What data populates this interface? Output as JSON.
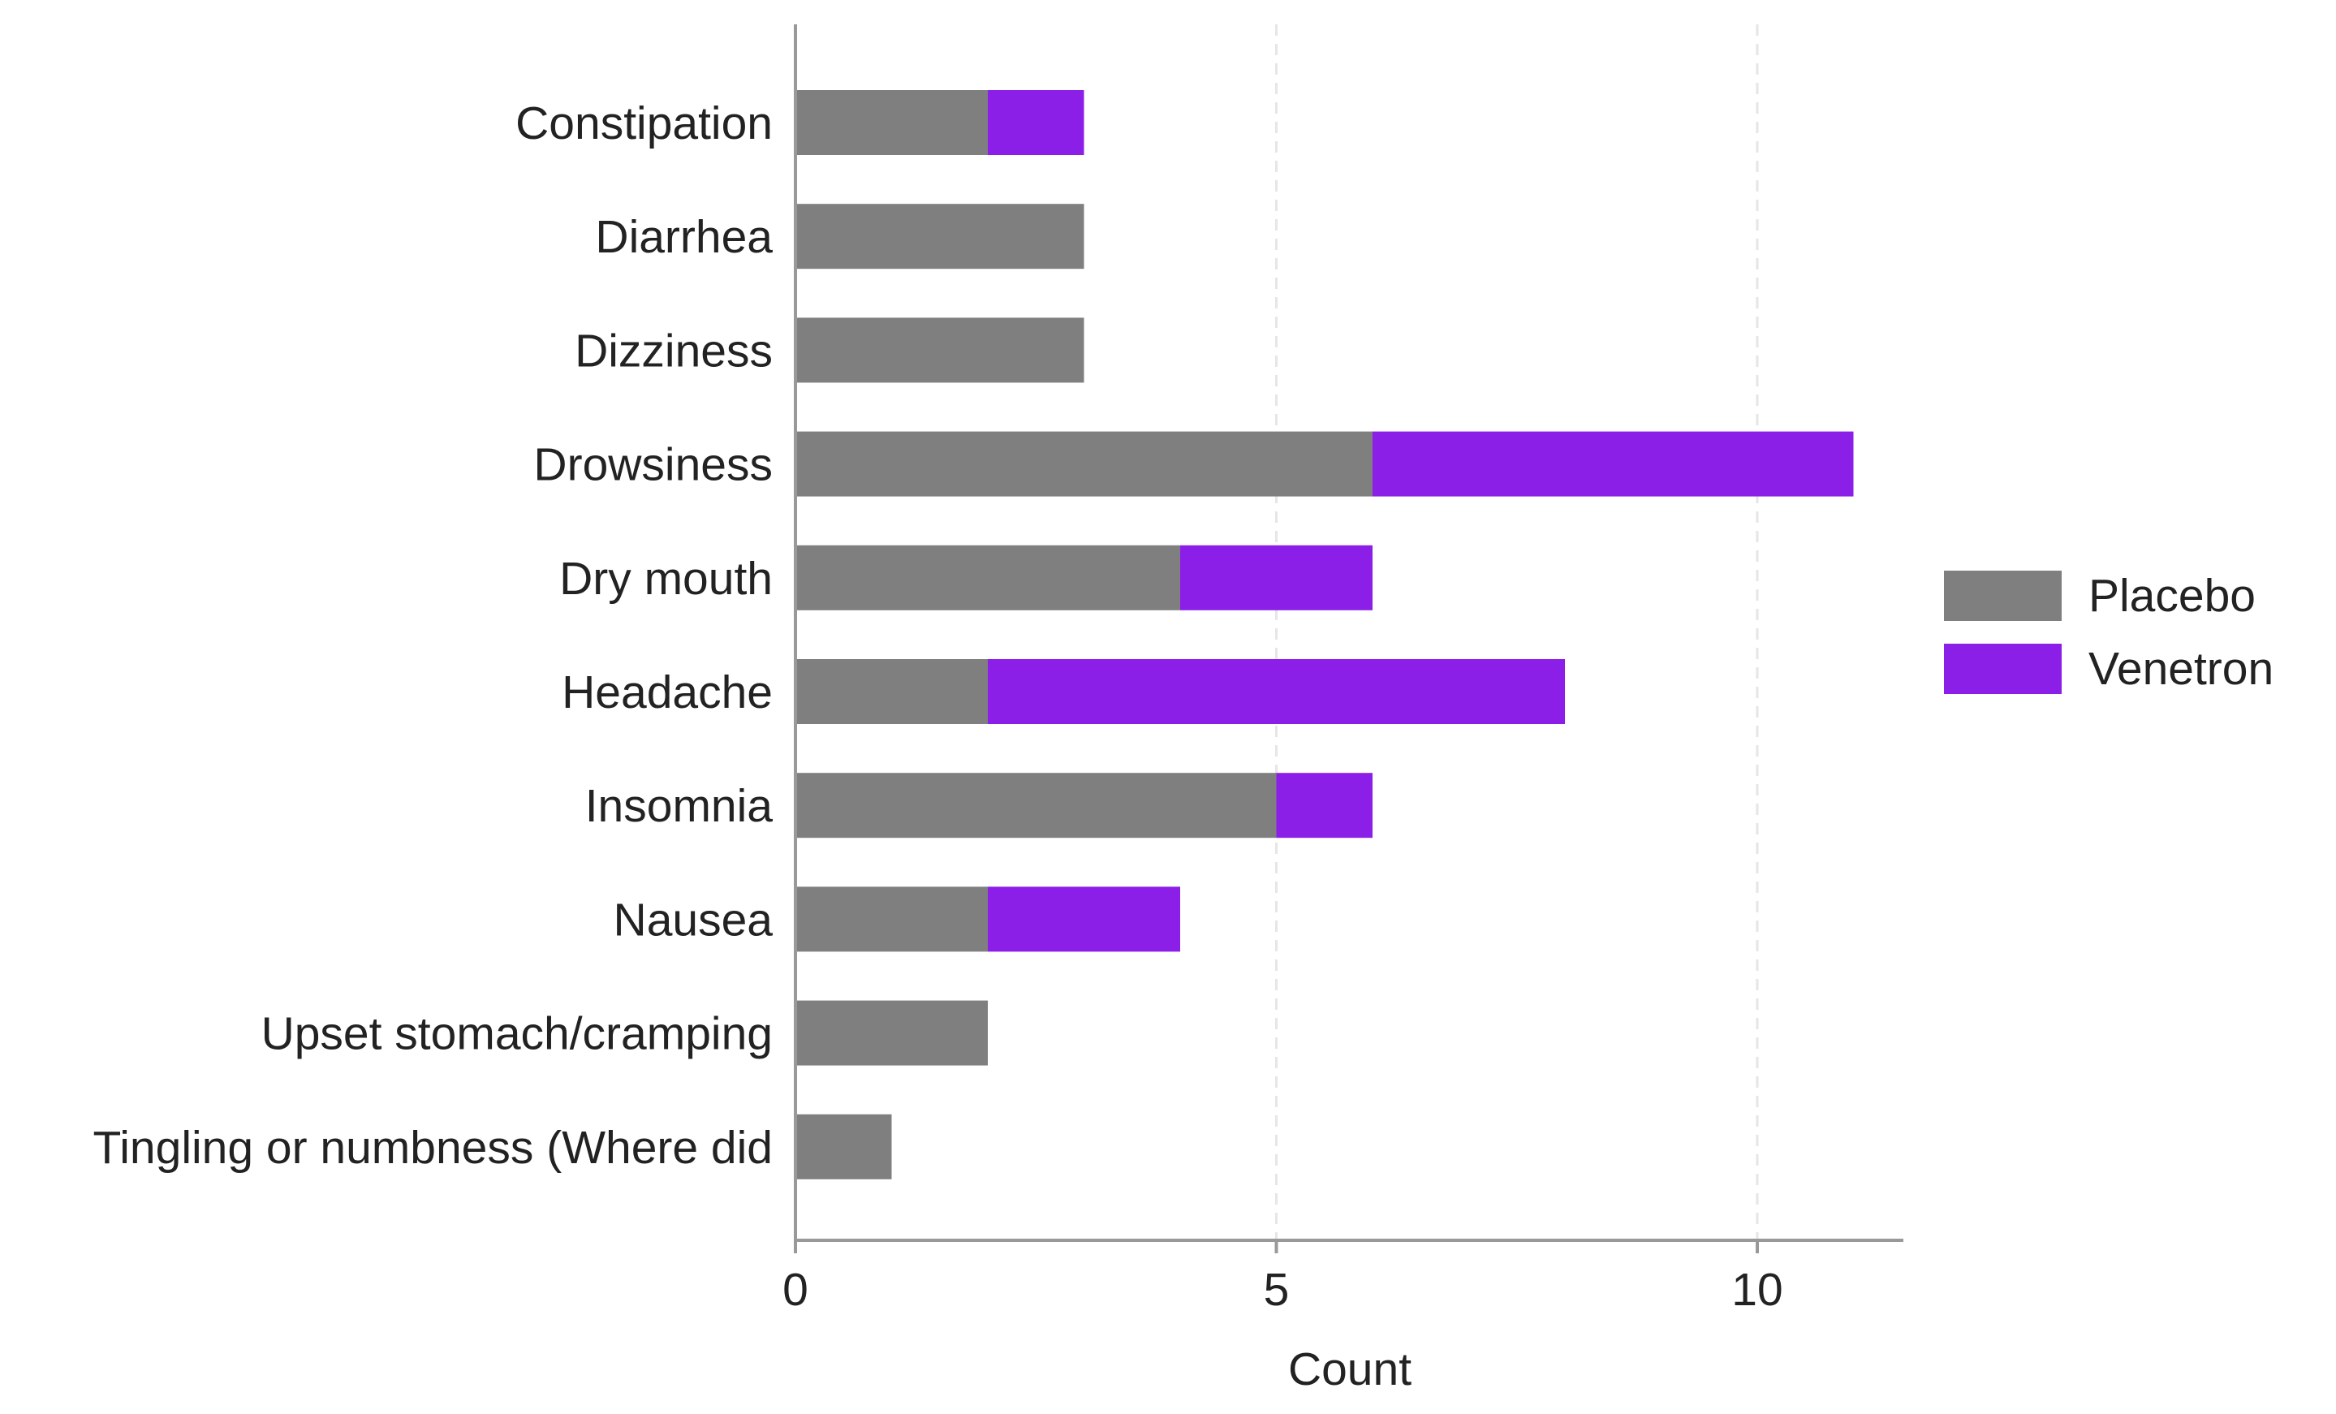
{
  "chart_data": {
    "type": "bar",
    "orientation": "horizontal",
    "stacked": true,
    "title": "",
    "xlabel": "Count",
    "ylabel": "",
    "xlim": [
      0,
      11.5
    ],
    "xticks": [
      0,
      5,
      10
    ],
    "grid": "vertical dashed at x ticks",
    "legend_position": "right",
    "categories": [
      "Constipation",
      "Diarrhea",
      "Dizziness",
      "Drowsiness",
      "Dry mouth",
      "Headache",
      "Insomnia",
      "Nausea",
      "Upset stomach/cramping",
      "Tingling or numbness (Where did"
    ],
    "series": [
      {
        "name": "Placebo",
        "color": "#7f7f7f",
        "values": [
          2,
          3,
          3,
          6,
          4,
          2,
          5,
          2,
          2,
          1
        ]
      },
      {
        "name": "Venetron",
        "color": "#8b1fe8",
        "values": [
          1,
          0,
          0,
          5,
          2,
          6,
          1,
          2,
          0,
          0
        ]
      }
    ]
  }
}
